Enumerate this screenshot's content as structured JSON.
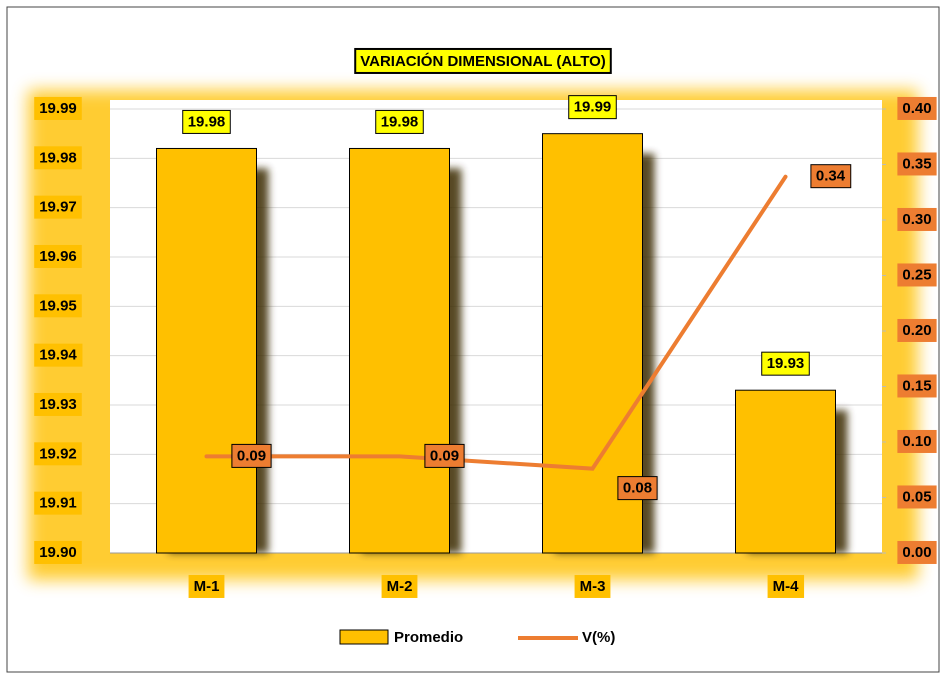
{
  "chart_data": {
    "type": "bar_line",
    "title": "VARIACIÓN DIMENSIONAL (ALTO)",
    "categories": [
      "M-1",
      "M-2",
      "M-3",
      "M-4"
    ],
    "series": [
      {
        "name": "Promedio",
        "color": "#FFC000",
        "type": "bar",
        "values": [
          19.982,
          19.982,
          19.985,
          19.933
        ],
        "value_labels": [
          "19.98",
          "19.98",
          "19.99",
          "19.93"
        ]
      },
      {
        "name": "V(%)",
        "color": "#ED7D31",
        "type": "line",
        "axis": "y2",
        "values": [
          0.087,
          0.087,
          0.076,
          0.339
        ],
        "value_labels": [
          "0.09",
          "0.09",
          "0.08",
          "0.34"
        ]
      }
    ],
    "ylim": [
      19.9,
      19.99
    ],
    "yticks": [
      {
        "value": 19.9,
        "label": "19.90"
      },
      19.91,
      19.92,
      19.93,
      19.94,
      19.95,
      19.96,
      19.97,
      19.98,
      19.99
    ],
    "y2lim": [
      0,
      0.4
    ],
    "y2ticks": [
      {
        "value": 0,
        "label": "0.00"
      },
      0.05,
      {
        "value": 0.1,
        "label": "0.10"
      },
      0.15,
      {
        "value": 0.2,
        "label": "0.20"
      },
      0.25,
      {
        "value": 0.3,
        "label": "0.30"
      },
      0.35,
      {
        "value": 0.4,
        "label": "0.40"
      }
    ],
    "grid": true,
    "legend": "bottom"
  }
}
